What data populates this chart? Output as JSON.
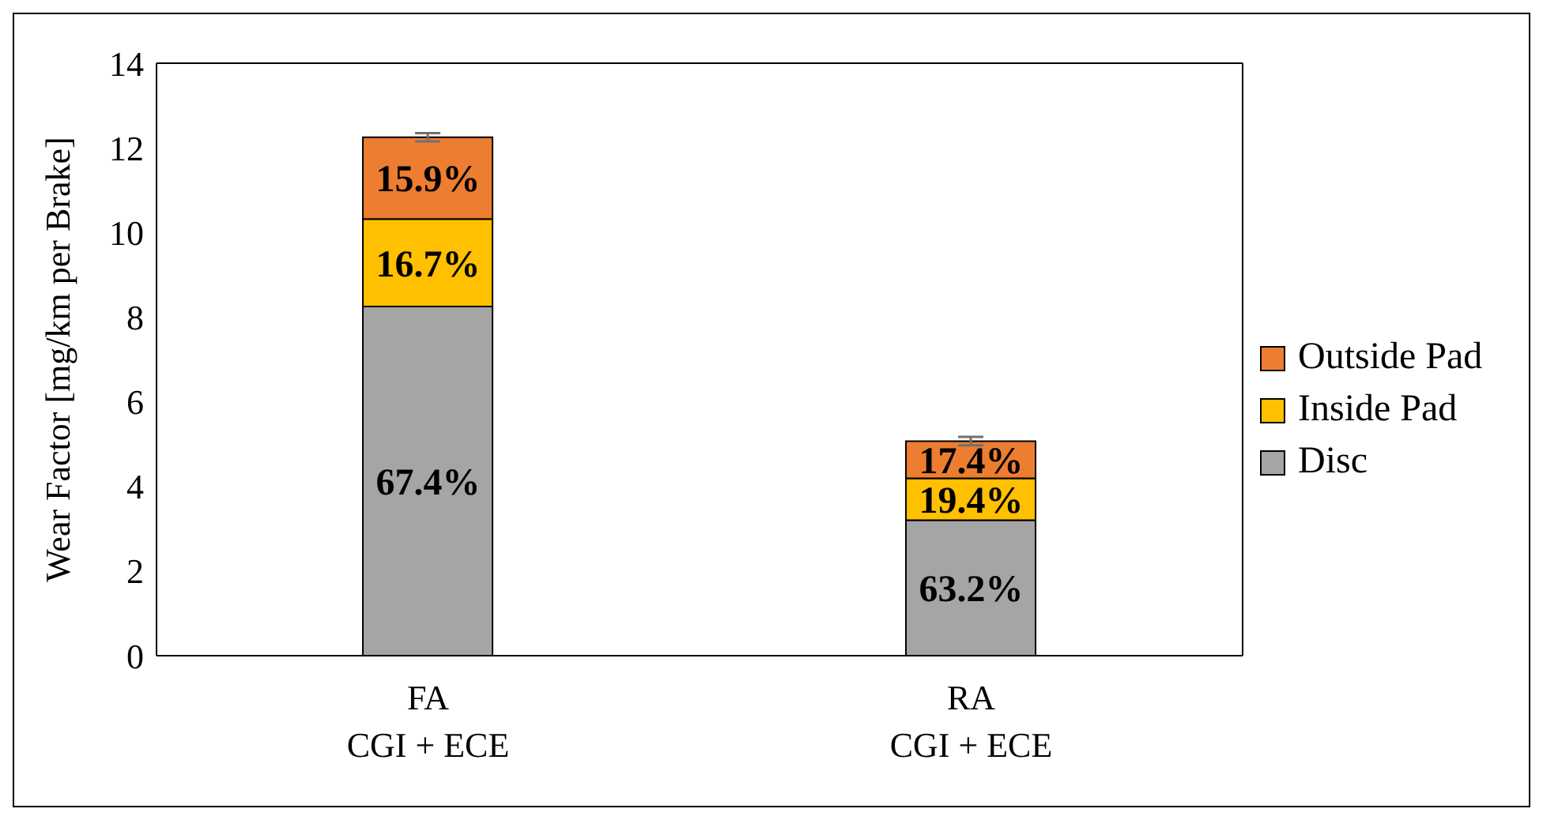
{
  "chart_data": {
    "type": "bar",
    "stacked": true,
    "categories": [
      "FA\nCGI + ECE",
      "RA\nCGI + ECE"
    ],
    "ylabel": "Wear Factor [mg/km per Brake]",
    "ylim": [
      0,
      14
    ],
    "yticks": [
      0,
      2,
      4,
      6,
      8,
      10,
      12,
      14
    ],
    "grid": false,
    "legend": "right",
    "series": [
      {
        "name": "Disc",
        "color": "#a5a5a5",
        "values": [
          8.25,
          3.2
        ]
      },
      {
        "name": "Inside Pad",
        "color": "#ffc000",
        "values": [
          2.07,
          0.99
        ]
      },
      {
        "name": "Outside Pad",
        "color": "#ed7d31",
        "values": [
          1.93,
          0.88
        ],
        "errors": [
          0.1,
          0.1
        ]
      }
    ],
    "annotations": [
      "67.4%",
      "16.7%",
      "15.9%",
      "63.2%",
      "19.4%",
      "17.4%"
    ]
  }
}
